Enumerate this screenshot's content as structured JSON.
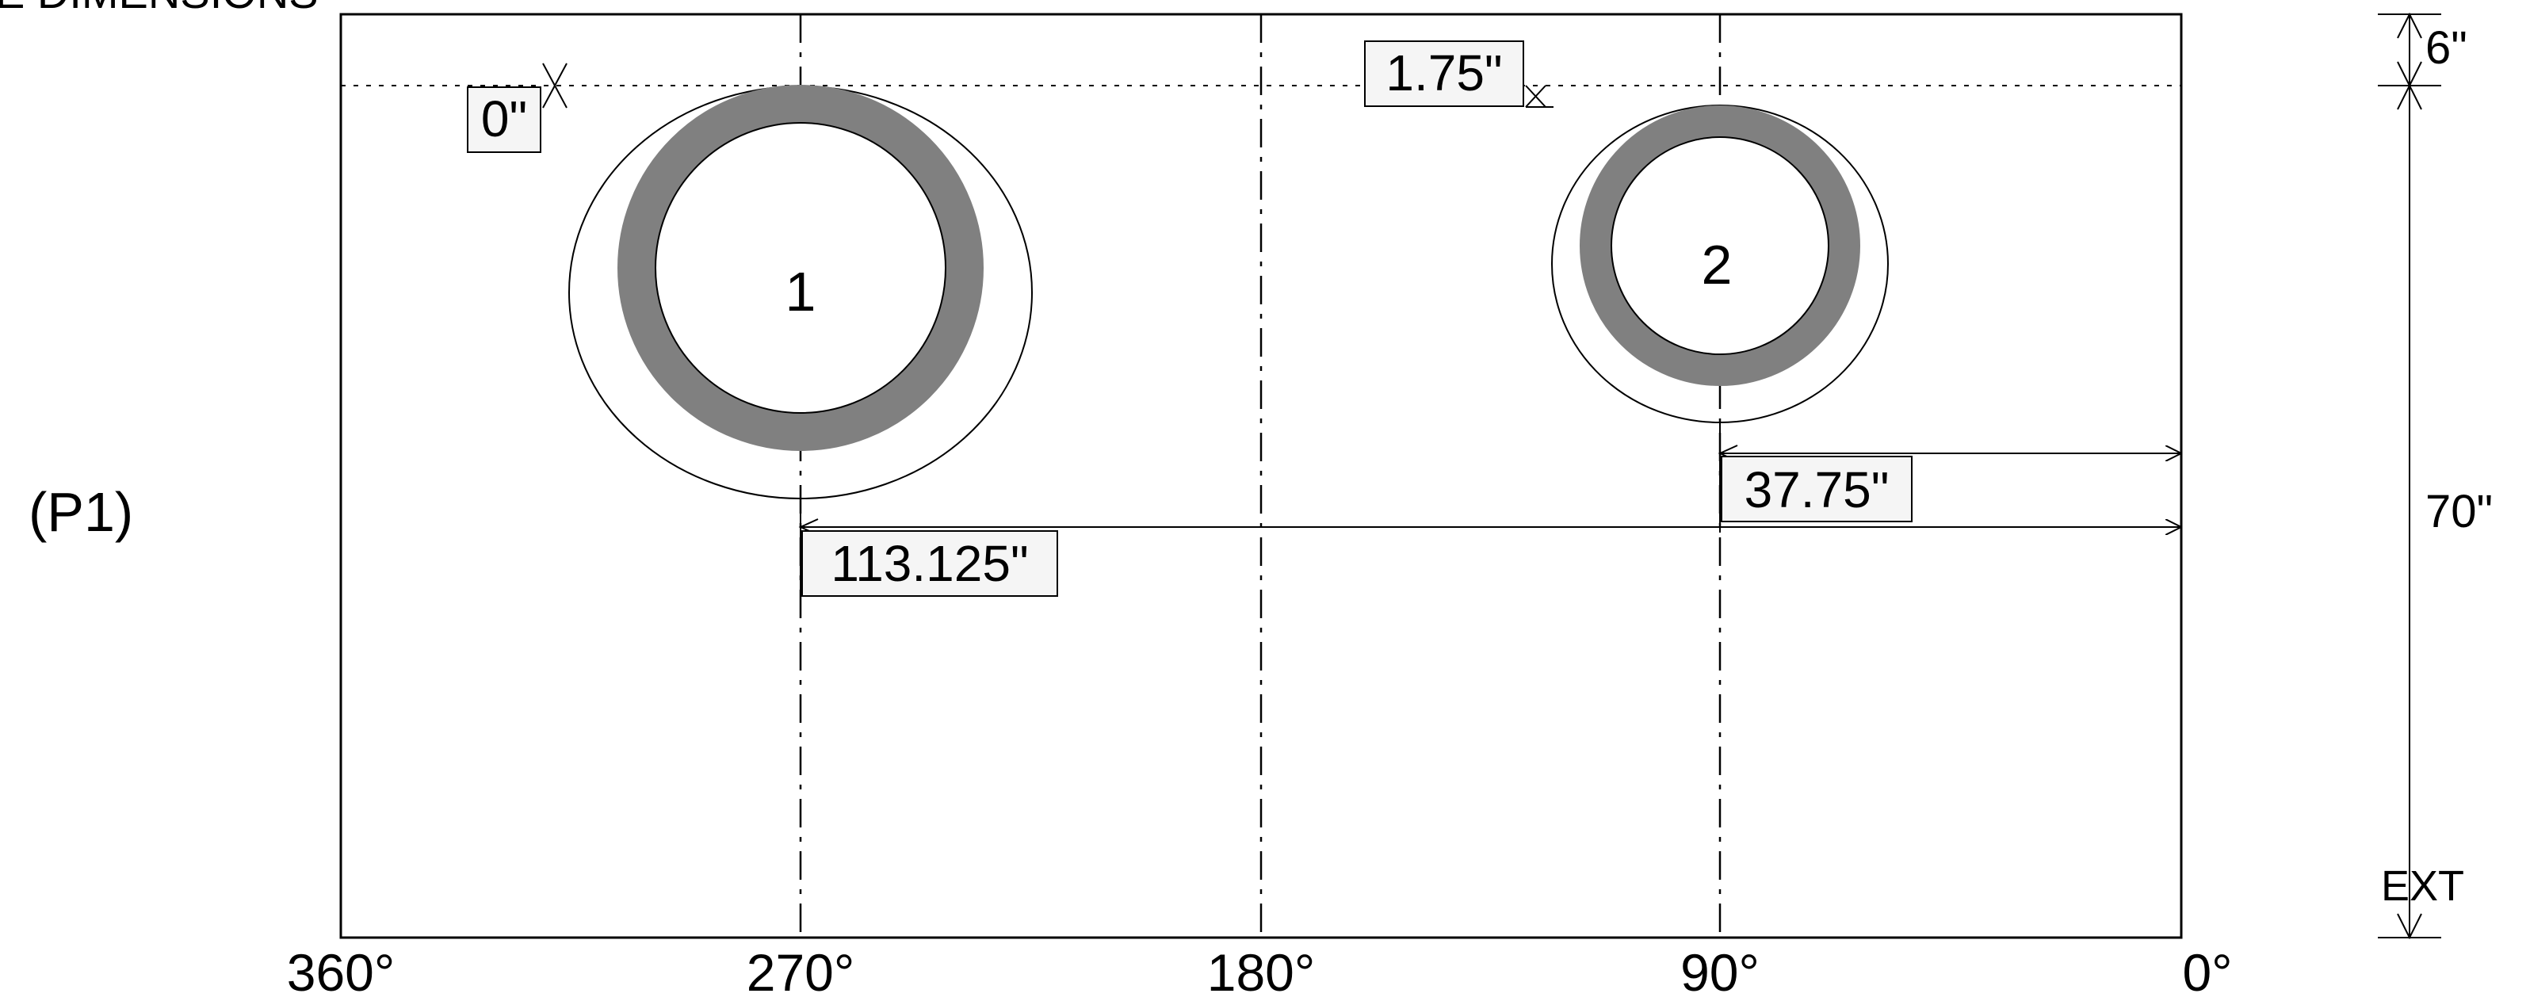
{
  "header_text": "E DIMENSIONS",
  "plate_label": "(P1)",
  "angles": [
    "360°",
    "270°",
    "180°",
    "90°",
    "0°"
  ],
  "holes": [
    {
      "number": "1",
      "angle_deg": 270
    },
    {
      "number": "2",
      "angle_deg": 90
    }
  ],
  "dimensions": {
    "hole1_from_top": "0\"",
    "hole2_from_top": "1.75\"",
    "hole1_from_zero": "113.125\"",
    "hole2_from_zero": "37.75\"",
    "top_offset": "6\"",
    "total_height": "70\"",
    "ext_label": "EXT"
  },
  "colors": {
    "line": "#000000",
    "ring": "#808080",
    "label_bg": "#f5f5f5"
  }
}
